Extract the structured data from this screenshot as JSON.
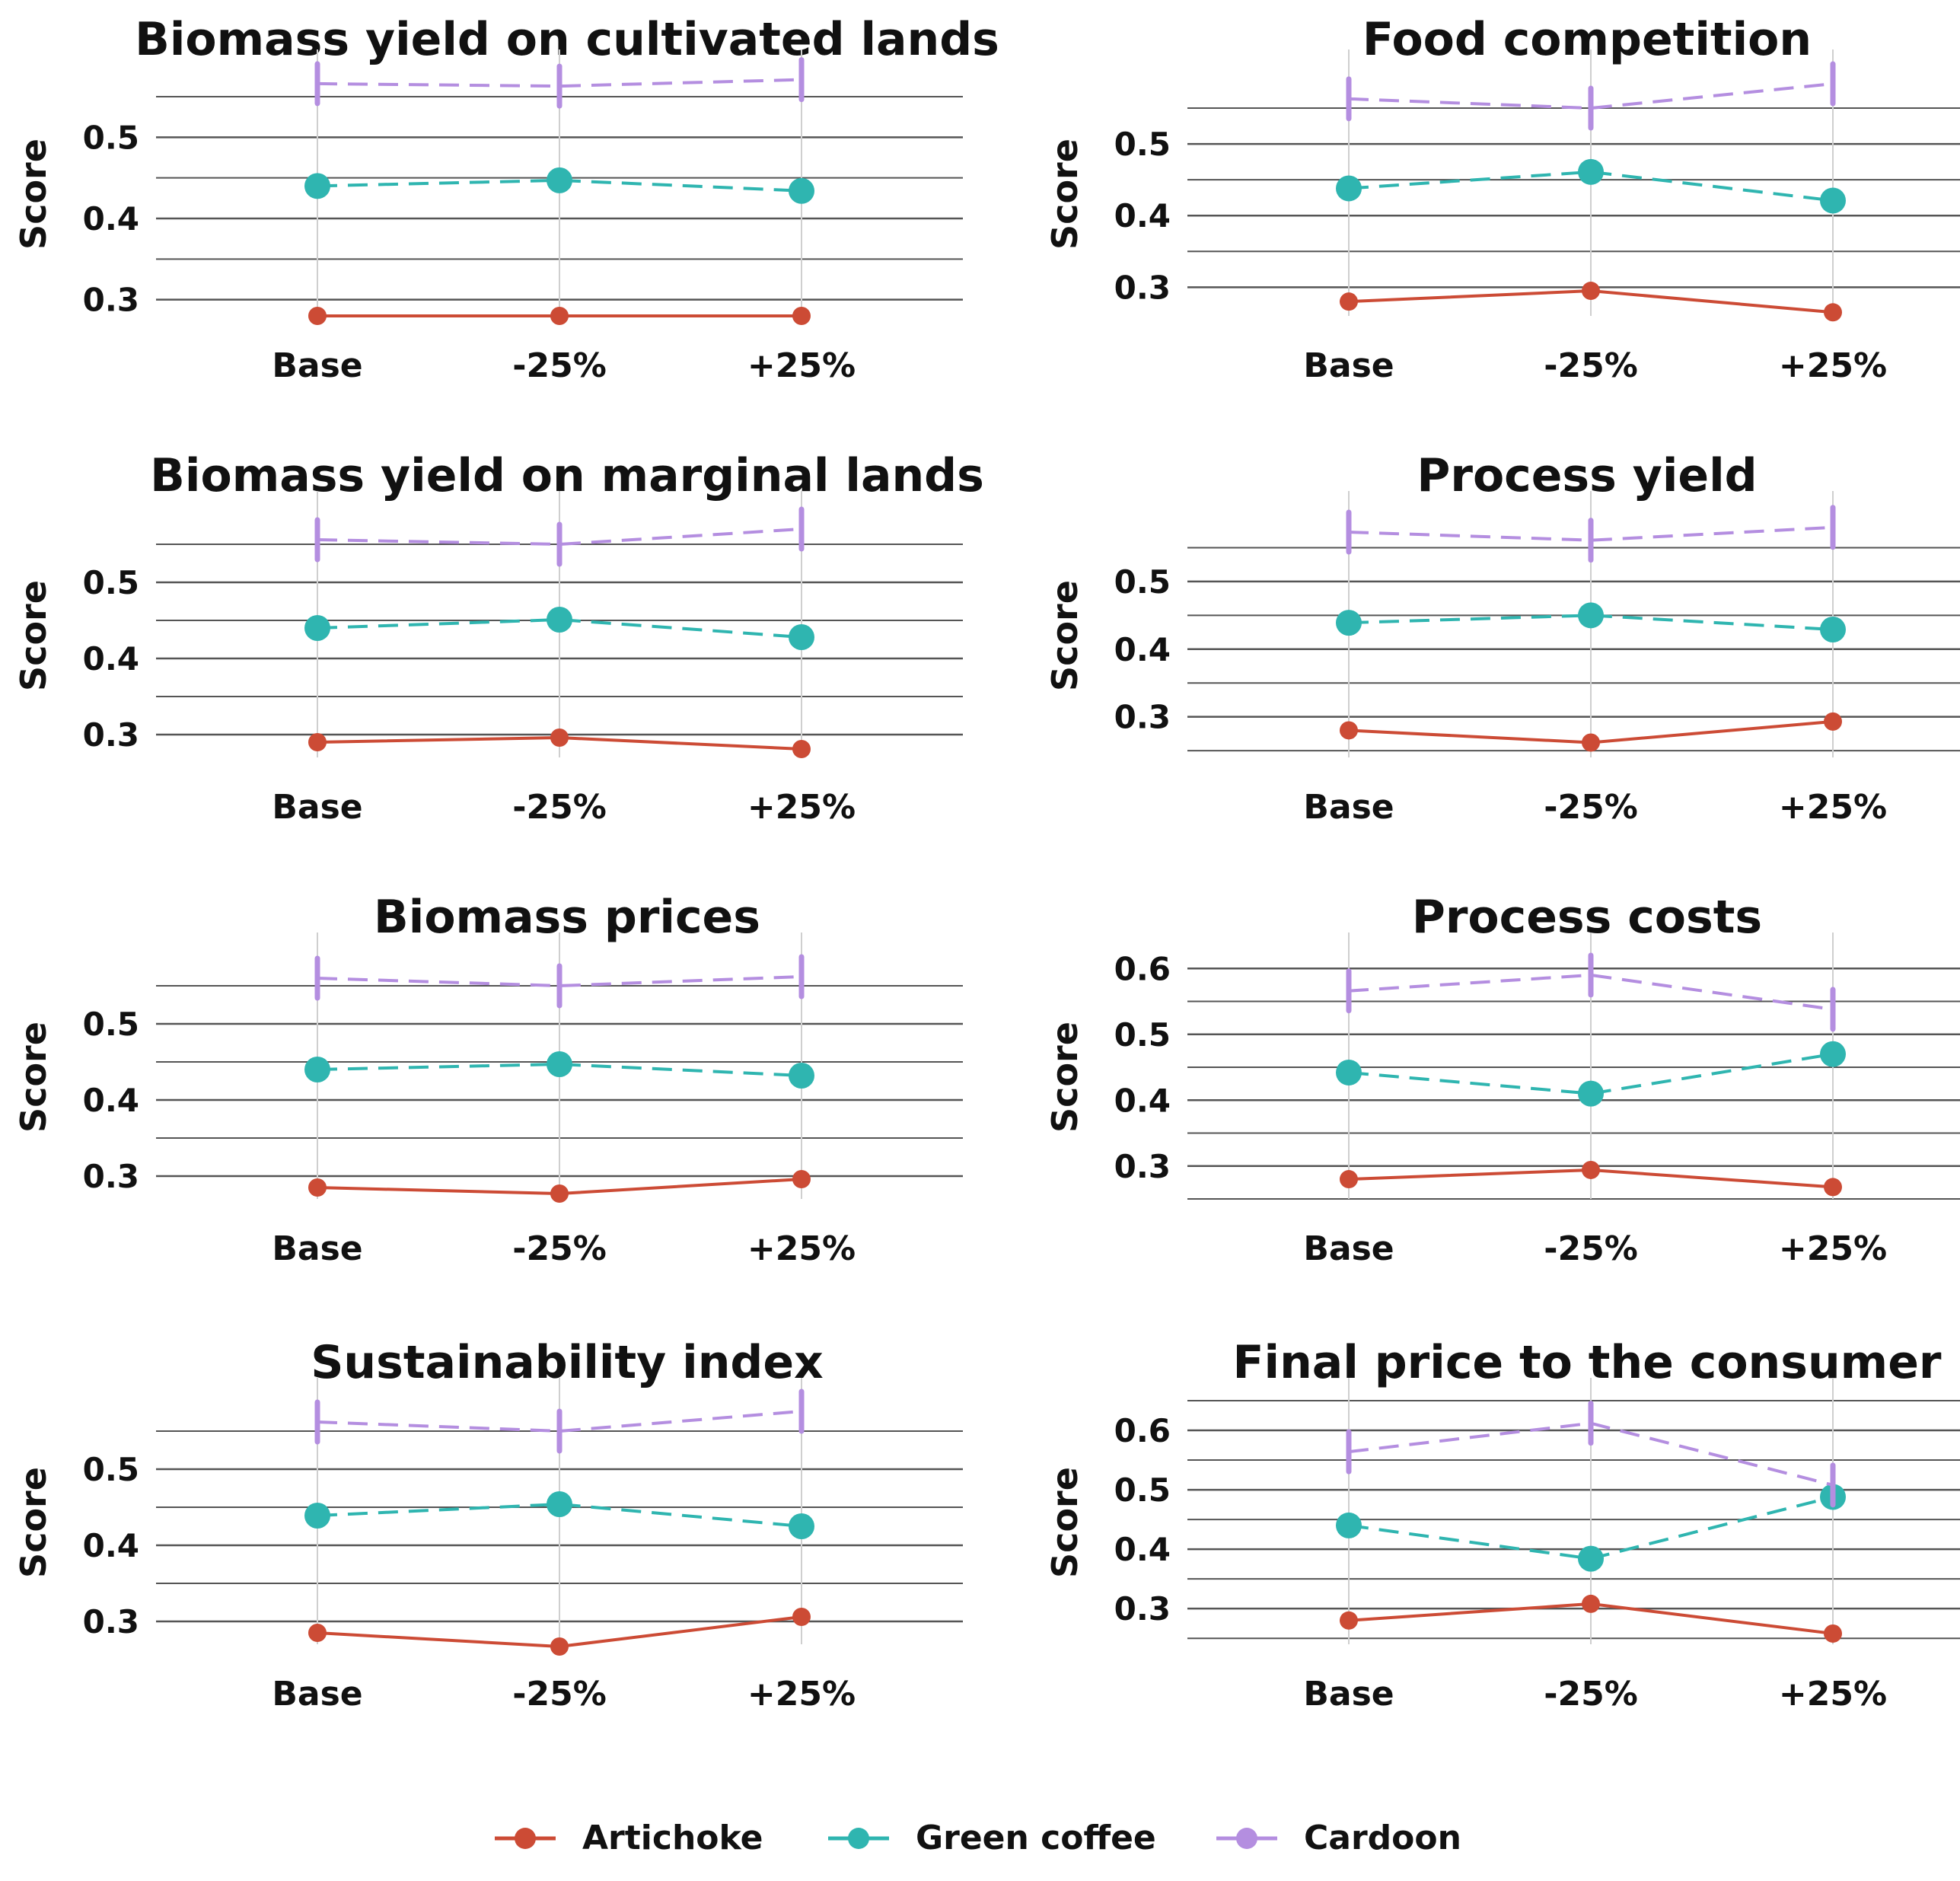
{
  "y_axis_label": "Score",
  "colors": {
    "Artichoke": "#cc4b35",
    "Green coffee": "#2fb5b0",
    "Cardoon": "#b48ee0",
    "grid": "#cfcfcf",
    "grid_dark": "#555555",
    "text": "#111111"
  },
  "legend": {
    "items": [
      {
        "name": "Artichoke",
        "color": "#cc4b35",
        "dash": "none"
      },
      {
        "name": "Green coffee",
        "color": "#2fb5b0",
        "dash": "long"
      },
      {
        "name": "Cardoon",
        "color": "#b48ee0",
        "dash": "long"
      }
    ]
  },
  "chart_data": [
    {
      "type": "line",
      "title": "Biomass yield on cultivated lands",
      "categories": [
        "Base",
        "-25%",
        "+25%"
      ],
      "ylabel": "Score",
      "ylim": [
        0.28,
        0.58
      ],
      "yticks": [
        0.3,
        0.4,
        0.5
      ],
      "series": [
        {
          "name": "Artichoke",
          "values": [
            0.28,
            0.28,
            0.28
          ]
        },
        {
          "name": "Green coffee",
          "values": [
            0.44,
            0.447,
            0.434
          ]
        },
        {
          "name": "Cardoon",
          "values": [
            0.566,
            0.563,
            0.571
          ]
        }
      ]
    },
    {
      "type": "line",
      "title": "Food competition",
      "categories": [
        "Base",
        "-25%",
        "+25%"
      ],
      "ylabel": "Score",
      "ylim": [
        0.26,
        0.6
      ],
      "yticks": [
        0.3,
        0.4,
        0.5
      ],
      "series": [
        {
          "name": "Artichoke",
          "values": [
            0.28,
            0.295,
            0.265
          ]
        },
        {
          "name": "Green coffee",
          "values": [
            0.438,
            0.461,
            0.421
          ]
        },
        {
          "name": "Cardoon",
          "values": [
            0.563,
            0.55,
            0.584
          ]
        }
      ]
    },
    {
      "type": "line",
      "title": "Biomass yield on marginal lands",
      "categories": [
        "Base",
        "-25%",
        "+25%"
      ],
      "ylabel": "Score",
      "ylim": [
        0.27,
        0.59
      ],
      "yticks": [
        0.3,
        0.4,
        0.5
      ],
      "series": [
        {
          "name": "Artichoke",
          "values": [
            0.29,
            0.296,
            0.281
          ]
        },
        {
          "name": "Green coffee",
          "values": [
            0.44,
            0.451,
            0.428
          ]
        },
        {
          "name": "Cardoon",
          "values": [
            0.556,
            0.55,
            0.57
          ]
        }
      ]
    },
    {
      "type": "line",
      "title": "Process yield",
      "categories": [
        "Base",
        "-25%",
        "+25%"
      ],
      "ylabel": "Score",
      "ylim": [
        0.24,
        0.6
      ],
      "yticks": [
        0.3,
        0.4,
        0.5
      ],
      "series": [
        {
          "name": "Artichoke",
          "values": [
            0.28,
            0.262,
            0.293
          ]
        },
        {
          "name": "Green coffee",
          "values": [
            0.439,
            0.45,
            0.429
          ]
        },
        {
          "name": "Cardoon",
          "values": [
            0.573,
            0.561,
            0.58
          ]
        }
      ]
    },
    {
      "type": "line",
      "title": "Biomass prices",
      "categories": [
        "Base",
        "-25%",
        "+25%"
      ],
      "ylabel": "Score",
      "ylim": [
        0.27,
        0.59
      ],
      "yticks": [
        0.3,
        0.4,
        0.5
      ],
      "series": [
        {
          "name": "Artichoke",
          "values": [
            0.285,
            0.277,
            0.296
          ]
        },
        {
          "name": "Green coffee",
          "values": [
            0.44,
            0.447,
            0.432
          ]
        },
        {
          "name": "Cardoon",
          "values": [
            0.56,
            0.55,
            0.562
          ]
        }
      ]
    },
    {
      "type": "line",
      "title": "Process costs",
      "categories": [
        "Base",
        "-25%",
        "+25%"
      ],
      "ylabel": "Score",
      "ylim": [
        0.25,
        0.62
      ],
      "yticks": [
        0.3,
        0.4,
        0.5,
        0.6
      ],
      "series": [
        {
          "name": "Artichoke",
          "values": [
            0.28,
            0.294,
            0.268
          ]
        },
        {
          "name": "Green coffee",
          "values": [
            0.442,
            0.41,
            0.47
          ]
        },
        {
          "name": "Cardoon",
          "values": [
            0.566,
            0.59,
            0.538
          ]
        }
      ]
    },
    {
      "type": "line",
      "title": "Sustainability index",
      "categories": [
        "Base",
        "-25%",
        "+25%"
      ],
      "ylabel": "Score",
      "ylim": [
        0.27,
        0.59
      ],
      "yticks": [
        0.3,
        0.4,
        0.5
      ],
      "series": [
        {
          "name": "Artichoke",
          "values": [
            0.285,
            0.267,
            0.306
          ]
        },
        {
          "name": "Green coffee",
          "values": [
            0.439,
            0.454,
            0.425
          ]
        },
        {
          "name": "Cardoon",
          "values": [
            0.562,
            0.55,
            0.576
          ]
        }
      ]
    },
    {
      "type": "line",
      "title": "Final price to the consumer",
      "categories": [
        "Base",
        "-25%",
        "+25%"
      ],
      "ylabel": "Score",
      "ylim": [
        0.24,
        0.65
      ],
      "yticks": [
        0.3,
        0.4,
        0.5,
        0.6
      ],
      "series": [
        {
          "name": "Artichoke",
          "values": [
            0.28,
            0.308,
            0.258
          ]
        },
        {
          "name": "Green coffee",
          "values": [
            0.44,
            0.384,
            0.488
          ]
        },
        {
          "name": "Cardoon",
          "values": [
            0.564,
            0.612,
            0.508
          ]
        }
      ]
    }
  ]
}
